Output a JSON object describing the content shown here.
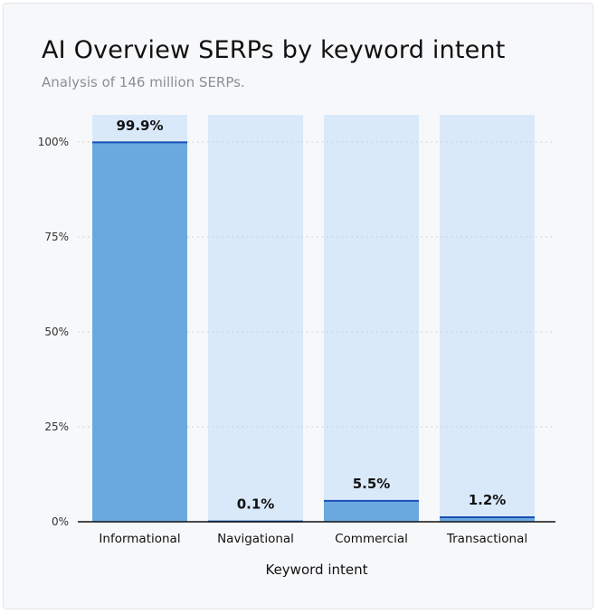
{
  "chart_data": {
    "type": "bar",
    "title": "AI Overview SERPs by keyword intent",
    "subtitle": "Analysis of 146 million SERPs.",
    "xlabel": "Keyword intent",
    "ylabel": "",
    "categories": [
      "Informational",
      "Navigational",
      "Commercial",
      "Transactional"
    ],
    "values": [
      99.9,
      0.1,
      5.5,
      1.2
    ],
    "value_labels": [
      "99.9%",
      "0.1%",
      "5.5%",
      "1.2%"
    ],
    "ylim": [
      0,
      100
    ],
    "yticks": [
      0,
      25,
      50,
      75,
      100
    ],
    "ytick_labels": [
      "0%",
      "25%",
      "50%",
      "75%",
      "100%"
    ],
    "grid": true,
    "legend": "none",
    "colors": {
      "bar": "#6aa9e0",
      "bar_top_line": "#1c4fb5",
      "background_column": "#d9e9f9",
      "grid": "#c5c9cf",
      "axis": "#111111"
    }
  }
}
